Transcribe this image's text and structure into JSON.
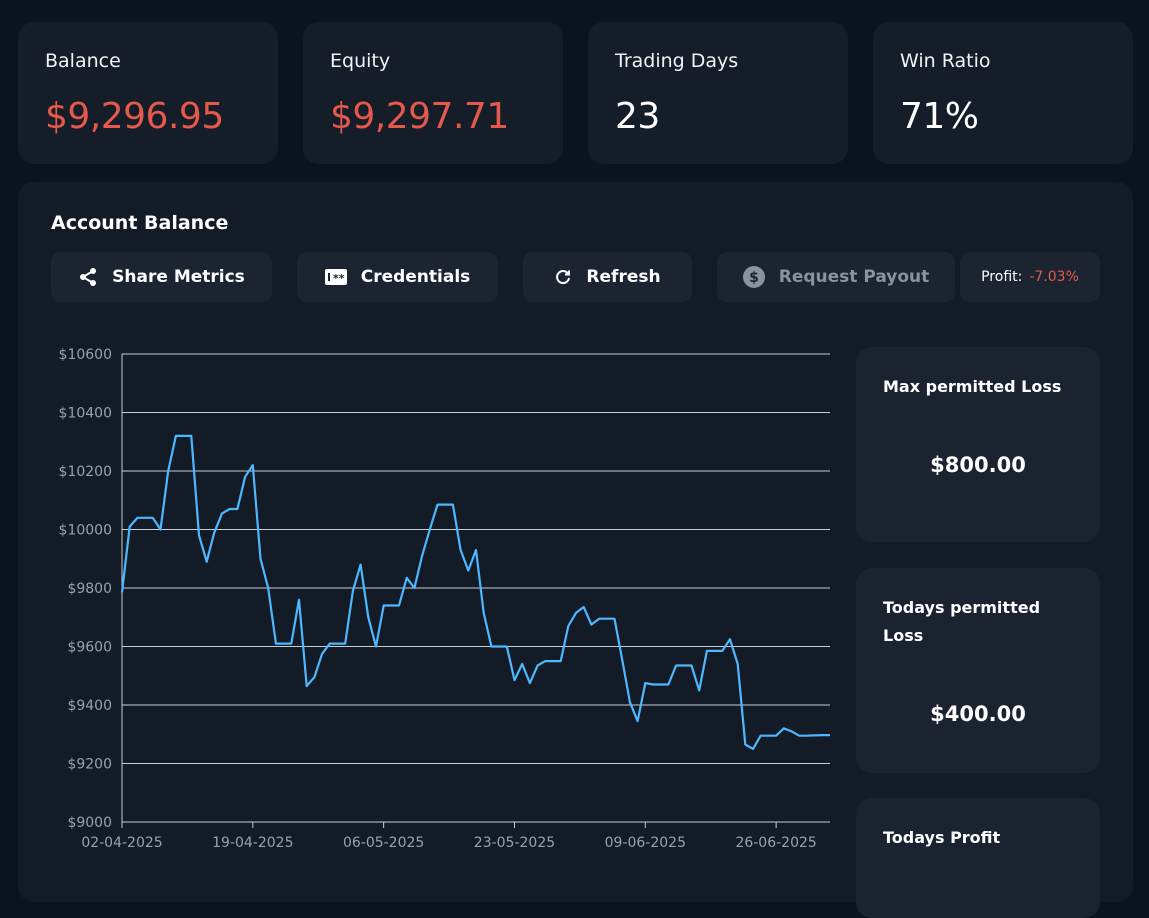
{
  "stats": [
    {
      "label": "Balance",
      "value": "$9,296.95",
      "color": "#e5594c"
    },
    {
      "label": "Equity",
      "value": "$9,297.71",
      "color": "#e5594c"
    },
    {
      "label": "Trading Days",
      "value": "23",
      "color": "#ffffff"
    },
    {
      "label": "Win Ratio",
      "value": "71%",
      "color": "#ffffff"
    }
  ],
  "panel": {
    "title": "Account Balance",
    "buttons": {
      "share": "Share Metrics",
      "credentials": "Credentials",
      "refresh": "Refresh",
      "payout": "Request Payout"
    },
    "profit_label": "Profit:",
    "profit_value": "-7.03%"
  },
  "side_cards": {
    "max_loss": {
      "title": "Max permitted Loss",
      "value": "$800.00"
    },
    "today_loss": {
      "title": "Todays permitted Loss",
      "value": "$400.00"
    },
    "today_profit": {
      "title": "Todays Profit"
    }
  },
  "colors": {
    "accent": "#4db8ff",
    "negative": "#e5594c",
    "card": "#151d28"
  },
  "chart_data": {
    "type": "line",
    "title": "Account Balance",
    "xlabel": "",
    "ylabel": "",
    "ylim": [
      9000,
      10600
    ],
    "y_ticks": [
      9000,
      9200,
      9400,
      9600,
      9800,
      10000,
      10200,
      10400,
      10600
    ],
    "y_tick_labels": [
      "$9000",
      "$9200",
      "$9400",
      "$9600",
      "$9800",
      "$10000",
      "$10200",
      "$10400",
      "$10600"
    ],
    "x_ticks": [
      0,
      17,
      34,
      51,
      68,
      85
    ],
    "x_tick_labels": [
      "02-04-2025",
      "19-04-2025",
      "06-05-2025",
      "23-05-2025",
      "09-06-2025",
      "26-06-2025"
    ],
    "grid": true,
    "series": [
      {
        "name": "Balance",
        "color": "#4db8ff",
        "points": [
          [
            0,
            9785
          ],
          [
            1,
            10010
          ],
          [
            2,
            10040
          ],
          [
            3,
            10040
          ],
          [
            4,
            10040
          ],
          [
            5,
            10000
          ],
          [
            6,
            10200
          ],
          [
            7,
            10320
          ],
          [
            8,
            10320
          ],
          [
            9,
            10320
          ],
          [
            10,
            9980
          ],
          [
            11,
            9890
          ],
          [
            12,
            9990
          ],
          [
            13,
            10055
          ],
          [
            14,
            10070
          ],
          [
            15,
            10070
          ],
          [
            16,
            10180
          ],
          [
            17,
            10220
          ],
          [
            18,
            9900
          ],
          [
            19,
            9800
          ],
          [
            20,
            9610
          ],
          [
            21,
            9610
          ],
          [
            22,
            9610
          ],
          [
            23,
            9760
          ],
          [
            24,
            9465
          ],
          [
            25,
            9495
          ],
          [
            26,
            9575
          ],
          [
            27,
            9610
          ],
          [
            28,
            9610
          ],
          [
            29,
            9610
          ],
          [
            30,
            9790
          ],
          [
            31,
            9880
          ],
          [
            32,
            9700
          ],
          [
            33,
            9600
          ],
          [
            34,
            9740
          ],
          [
            35,
            9740
          ],
          [
            36,
            9740
          ],
          [
            37,
            9835
          ],
          [
            38,
            9800
          ],
          [
            39,
            9910
          ],
          [
            40,
            10000
          ],
          [
            41,
            10085
          ],
          [
            42,
            10085
          ],
          [
            43,
            10085
          ],
          [
            44,
            9930
          ],
          [
            45,
            9860
          ],
          [
            46,
            9930
          ],
          [
            47,
            9715
          ],
          [
            48,
            9600
          ],
          [
            49,
            9600
          ],
          [
            50,
            9600
          ],
          [
            51,
            9485
          ],
          [
            52,
            9540
          ],
          [
            53,
            9475
          ],
          [
            54,
            9535
          ],
          [
            55,
            9550
          ],
          [
            56,
            9550
          ],
          [
            57,
            9550
          ],
          [
            58,
            9670
          ],
          [
            59,
            9715
          ],
          [
            60,
            9735
          ],
          [
            61,
            9675
          ],
          [
            62,
            9695
          ],
          [
            63,
            9695
          ],
          [
            64,
            9695
          ],
          [
            65,
            9555
          ],
          [
            66,
            9410
          ],
          [
            67,
            9345
          ],
          [
            68,
            9475
          ],
          [
            69,
            9470
          ],
          [
            70,
            9470
          ],
          [
            71,
            9470
          ],
          [
            72,
            9535
          ],
          [
            73,
            9535
          ],
          [
            74,
            9535
          ],
          [
            75,
            9450
          ],
          [
            76,
            9585
          ],
          [
            77,
            9585
          ],
          [
            78,
            9585
          ],
          [
            79,
            9625
          ],
          [
            80,
            9540
          ],
          [
            81,
            9265
          ],
          [
            82,
            9250
          ],
          [
            83,
            9295
          ],
          [
            84,
            9295
          ],
          [
            85,
            9295
          ],
          [
            86,
            9320
          ],
          [
            87,
            9310
          ],
          [
            88,
            9295
          ],
          [
            89,
            9295
          ],
          [
            90,
            9296
          ],
          [
            91,
            9297
          ],
          [
            92,
            9297
          ]
        ]
      }
    ]
  }
}
